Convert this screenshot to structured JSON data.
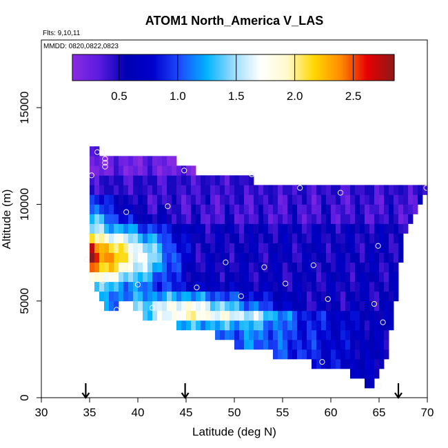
{
  "chart_data": {
    "type": "heatmap",
    "title": "ATOM1 North_America V_LAS",
    "subtitle_flights": "Flts: 9,10,11",
    "subtitle_dates": "MMDD: 0820,0822,0823",
    "xlabel": "Latitude (deg N)",
    "ylabel": "Altitude (m)",
    "xlim": [
      30,
      70
    ],
    "ylim": [
      0,
      18500
    ],
    "x_ticks": [
      "30",
      "35",
      "40",
      "45",
      "50",
      "55",
      "60",
      "65",
      "70"
    ],
    "y_ticks": [
      "0",
      "5000",
      "10000",
      "15000"
    ],
    "colorbar": {
      "range": [
        0.1,
        2.85
      ],
      "ticks": [
        "0.5",
        "1.0",
        "1.5",
        "2.0",
        "2.5"
      ],
      "tick_values": [
        0.5,
        1.0,
        1.5,
        2.0,
        2.5
      ],
      "colors": [
        "#8a2be2",
        "#5b1be0",
        "#0000b3",
        "#0000cd",
        "#1e4bff",
        "#00b2ff",
        "#99dcff",
        "#ffffff",
        "#fffacd",
        "#ffd800",
        "#ff8c00",
        "#e60000",
        "#8b1a1a"
      ]
    },
    "grid": {
      "lat_start": 35,
      "lat_step": 0.5,
      "n_cols": 70,
      "alt_start": 0,
      "alt_step": 500,
      "n_rows": 28
    },
    "columns": [
      {
        "lat": 35,
        "bottom": 6500,
        "top": 13000
      },
      {
        "lat": 37,
        "bottom": 4500,
        "top": 12500
      },
      {
        "lat": 39,
        "bottom": 5000,
        "top": 12500
      },
      {
        "lat": 41,
        "bottom": 4000,
        "top": 12500
      },
      {
        "lat": 43,
        "bottom": 4000,
        "top": 12500
      },
      {
        "lat": 45,
        "bottom": 3500,
        "top": 12000
      },
      {
        "lat": 47,
        "bottom": 3500,
        "top": 11500
      },
      {
        "lat": 49,
        "bottom": 3000,
        "top": 11500
      },
      {
        "lat": 51,
        "bottom": 2500,
        "top": 11500
      },
      {
        "lat": 53,
        "bottom": 2500,
        "top": 11000
      },
      {
        "lat": 55,
        "bottom": 2000,
        "top": 11000
      },
      {
        "lat": 57,
        "bottom": 2000,
        "top": 11000
      },
      {
        "lat": 59,
        "bottom": 1500,
        "top": 11000
      },
      {
        "lat": 61,
        "bottom": 1500,
        "top": 11000
      },
      {
        "lat": 63,
        "bottom": 1000,
        "top": 11000
      },
      {
        "lat": 64.5,
        "bottom": 500,
        "top": 11000
      },
      {
        "lat": 66,
        "bottom": 2500,
        "top": 11000
      },
      {
        "lat": 67.5,
        "bottom": 8000,
        "top": 11000
      },
      {
        "lat": 69.5,
        "bottom": 10500,
        "top": 11000
      }
    ],
    "flight_points": [
      {
        "lat": 35.8,
        "alt": 12700
      },
      {
        "lat": 36.3,
        "alt": 12700
      },
      {
        "lat": 36.6,
        "alt": 12350
      },
      {
        "lat": 36.6,
        "alt": 12150
      },
      {
        "lat": 36.6,
        "alt": 11950
      },
      {
        "lat": 35.2,
        "alt": 11500
      },
      {
        "lat": 44.8,
        "alt": 11750
      },
      {
        "lat": 51.8,
        "alt": 11550
      },
      {
        "lat": 56.8,
        "alt": 10850
      },
      {
        "lat": 61.0,
        "alt": 10600
      },
      {
        "lat": 69.9,
        "alt": 10850
      },
      {
        "lat": 43.1,
        "alt": 9900
      },
      {
        "lat": 38.8,
        "alt": 9600
      },
      {
        "lat": 64.9,
        "alt": 7850
      },
      {
        "lat": 34.7,
        "alt": 7150
      },
      {
        "lat": 49.1,
        "alt": 7000
      },
      {
        "lat": 53.1,
        "alt": 6750
      },
      {
        "lat": 58.2,
        "alt": 6850
      },
      {
        "lat": 36.4,
        "alt": 6050
      },
      {
        "lat": 40.0,
        "alt": 5850
      },
      {
        "lat": 46.1,
        "alt": 5700
      },
      {
        "lat": 55.3,
        "alt": 5900
      },
      {
        "lat": 50.7,
        "alt": 5250
      },
      {
        "lat": 59.7,
        "alt": 5100
      },
      {
        "lat": 64.5,
        "alt": 4850
      },
      {
        "lat": 41.5,
        "alt": 4650
      },
      {
        "lat": 37.8,
        "alt": 4550
      },
      {
        "lat": 65.4,
        "alt": 3900
      },
      {
        "lat": 59.1,
        "alt": 1850
      },
      {
        "lat": 65.0,
        "alt": 600
      }
    ],
    "arrows_lat": [
      34.6,
      44.9,
      67.0
    ]
  }
}
